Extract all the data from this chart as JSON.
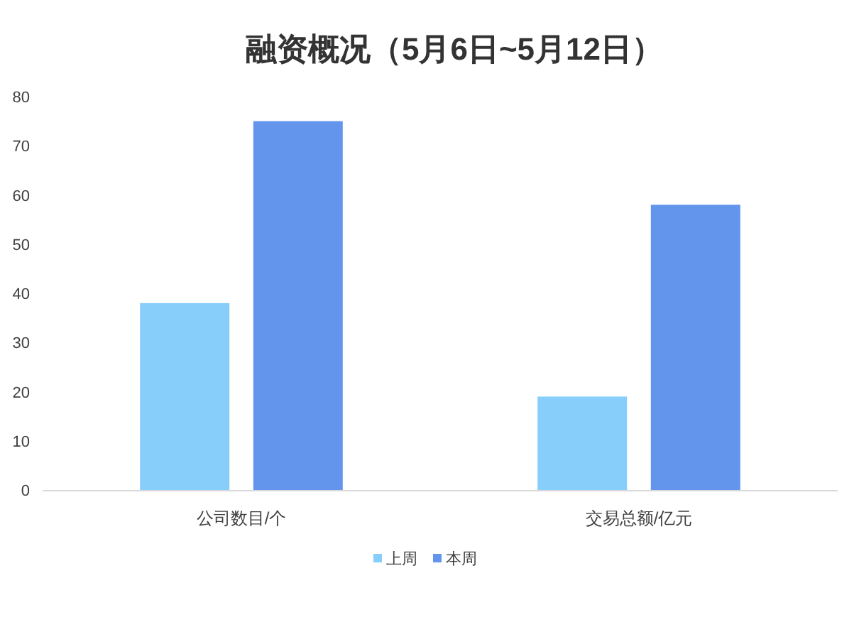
{
  "chart_data": {
    "type": "bar",
    "title": "融资概况（5月6日~5月12日）",
    "categories": [
      "公司数目/个",
      "交易总额/亿元"
    ],
    "series": [
      {
        "name": "上周",
        "color": "#87cefa",
        "values": [
          38,
          19
        ]
      },
      {
        "name": "本周",
        "color": "#6495ed",
        "values": [
          75,
          58
        ]
      }
    ],
    "ylim": [
      0,
      80
    ],
    "yticks": [
      0,
      10,
      20,
      30,
      40,
      50,
      60,
      70,
      80
    ],
    "legend": "bottom"
  }
}
